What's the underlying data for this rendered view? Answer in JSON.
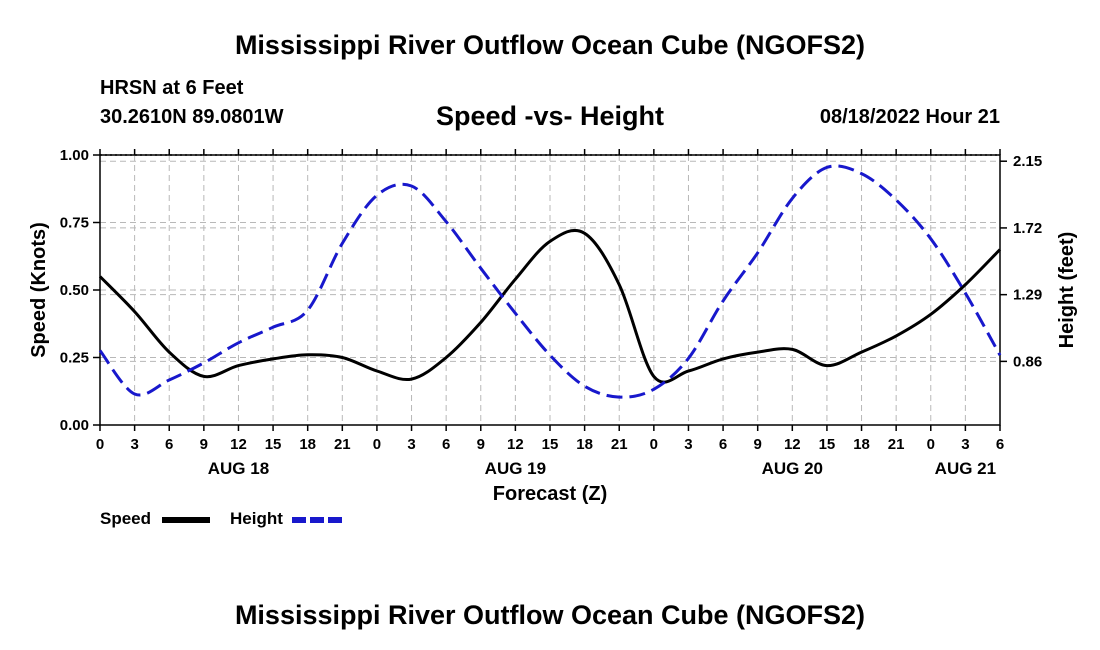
{
  "header": {
    "title": "Mississippi River Outflow Ocean Cube (NGOFS2)",
    "station": "HRSN at 6 Feet",
    "coords": "30.2610N  89.0801W",
    "subtitle": "Speed -vs- Height",
    "timestamp": "08/18/2022 Hour 21"
  },
  "footer": {
    "title": "Mississippi River Outflow Ocean Cube (NGOFS2)"
  },
  "legend": {
    "speed_label": "Speed",
    "height_label": "Height"
  },
  "colors": {
    "speed": "#000000",
    "height": "#1818cc",
    "grid": "#b8b8b8"
  },
  "chart_data": {
    "type": "line",
    "title": "Speed -vs- Height",
    "xlabel": "Forecast (Z)",
    "ylabel": "Speed (Knots)",
    "y2label": "Height (feet)",
    "x_unit": "forecast hours from AUG 18 00Z",
    "xlim": [
      0,
      78
    ],
    "ylim": [
      0,
      1.0
    ],
    "y2lim": [
      0.45,
      2.19
    ],
    "x_ticks": [
      0,
      3,
      6,
      9,
      12,
      15,
      18,
      21,
      24,
      27,
      30,
      33,
      36,
      39,
      42,
      45,
      48,
      51,
      54,
      57,
      60,
      63,
      66,
      69,
      72,
      75,
      78
    ],
    "x_tick_labels": [
      "0",
      "3",
      "6",
      "9",
      "12",
      "15",
      "18",
      "21",
      "0",
      "3",
      "6",
      "9",
      "12",
      "15",
      "18",
      "21",
      "0",
      "3",
      "6",
      "9",
      "12",
      "15",
      "18",
      "21",
      "0",
      "3",
      "6"
    ],
    "date_labels": [
      {
        "x": 12,
        "label": "AUG 18"
      },
      {
        "x": 36,
        "label": "AUG 19"
      },
      {
        "x": 60,
        "label": "AUG 20"
      },
      {
        "x": 75,
        "label": "AUG 21"
      }
    ],
    "y_ticks": [
      0.0,
      0.25,
      0.5,
      0.75,
      1.0
    ],
    "y_tick_labels": [
      "0.00",
      "0.25",
      "0.50",
      "0.75",
      "1.00"
    ],
    "y2_ticks": [
      0.86,
      1.29,
      1.72,
      2.15
    ],
    "y2_tick_labels": [
      "0.86",
      "1.29",
      "1.72",
      "2.15"
    ],
    "grid": true,
    "series": [
      {
        "name": "Speed",
        "axis": "left",
        "style": "solid",
        "x": [
          0,
          3,
          6,
          9,
          12,
          15,
          18,
          21,
          24,
          27,
          30,
          33,
          36,
          39,
          42,
          45,
          48,
          51,
          54,
          57,
          60,
          63,
          66,
          69,
          72,
          75,
          78
        ],
        "values": [
          0.55,
          0.42,
          0.27,
          0.18,
          0.22,
          0.245,
          0.26,
          0.25,
          0.2,
          0.17,
          0.25,
          0.38,
          0.54,
          0.68,
          0.71,
          0.52,
          0.18,
          0.2,
          0.245,
          0.27,
          0.28,
          0.22,
          0.27,
          0.33,
          0.41,
          0.52,
          0.65
        ]
      },
      {
        "name": "Height",
        "axis": "right",
        "style": "dashed",
        "x": [
          0,
          3,
          6,
          9,
          12,
          15,
          18,
          21,
          24,
          27,
          30,
          33,
          36,
          39,
          42,
          45,
          48,
          51,
          54,
          57,
          60,
          63,
          66,
          69,
          72,
          75,
          78
        ],
        "values": [
          0.93,
          0.65,
          0.74,
          0.85,
          0.98,
          1.08,
          1.19,
          1.62,
          1.93,
          1.99,
          1.76,
          1.46,
          1.17,
          0.9,
          0.7,
          0.63,
          0.68,
          0.88,
          1.25,
          1.56,
          1.91,
          2.11,
          2.07,
          1.9,
          1.65,
          1.3,
          0.9
        ]
      }
    ]
  }
}
